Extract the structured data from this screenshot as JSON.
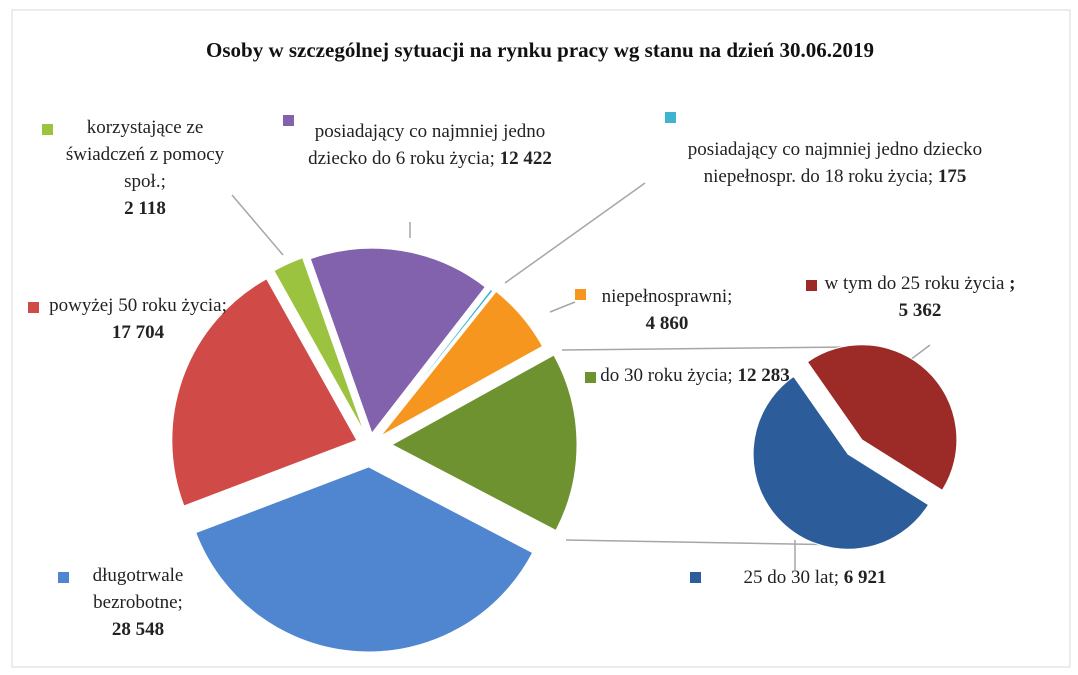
{
  "chart_data": {
    "type": "pie-of-pie",
    "title": "Osoby w szczególnej sytuacji na rynku pracy wg stanu  na dzień 30.06.2019",
    "categories": [
      "do 30 roku życia;",
      "długotrwale bezrobotne;",
      "powyżej 50 roku życia;",
      "korzystające ze świadczeń z pomocy społ.;",
      "posiadający co najmniej jedno dziecko do 6 roku życia;",
      "posiadający co najmniej jedno dziecko niepełnospr. do 18 roku życia;",
      "niepełnosprawni;"
    ],
    "values": [
      12283,
      28548,
      17704,
      2118,
      12422,
      175,
      4860
    ],
    "value_labels": [
      "12 283",
      "28 548",
      "17 704",
      "2 118",
      "12 422",
      "175",
      "4 860"
    ],
    "colors": [
      "#6f9231",
      "#4f86cf",
      "#d04a48",
      "#9bc33f",
      "#8262ad",
      "#3fb3cf",
      "#f6961e"
    ],
    "secondary": {
      "categories": [
        "w tym do 25 roku życia",
        "25 do 30 lat;"
      ],
      "values": [
        5362,
        6921
      ],
      "value_labels": [
        "; 5 362",
        "6 921"
      ],
      "colors": [
        "#9c2b28",
        "#2c5c9a"
      ]
    }
  }
}
